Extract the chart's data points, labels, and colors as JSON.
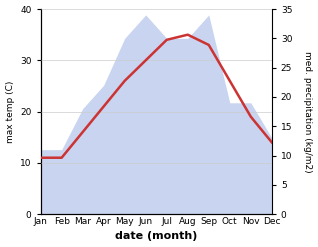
{
  "months": [
    "Jan",
    "Feb",
    "Mar",
    "Apr",
    "May",
    "Jun",
    "Jul",
    "Aug",
    "Sep",
    "Oct",
    "Nov",
    "Dec"
  ],
  "max_temp": [
    11,
    11,
    16,
    21,
    26,
    30,
    34,
    35,
    33,
    26,
    19,
    14
  ],
  "precipitation": [
    11,
    11,
    18,
    22,
    30,
    34,
    30,
    30,
    34,
    19,
    19,
    13
  ],
  "temp_color": "#cc3333",
  "precip_fill_color": "#c8d4f0",
  "temp_ylim": [
    0,
    40
  ],
  "precip_ylim": [
    0,
    35
  ],
  "xlabel": "date (month)",
  "ylabel_left": "max temp (C)",
  "ylabel_right": "med. precipitation (kg/m2)",
  "temp_yticks": [
    0,
    10,
    20,
    30,
    40
  ],
  "precip_yticks": [
    0,
    5,
    10,
    15,
    20,
    25,
    30,
    35
  ]
}
